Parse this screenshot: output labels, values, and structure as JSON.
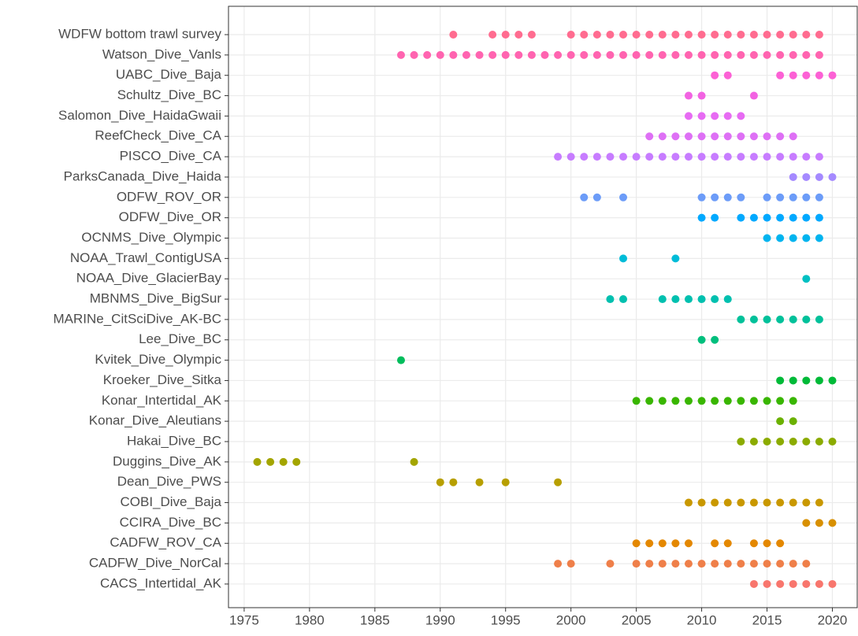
{
  "chart_data": {
    "type": "dot",
    "categories": [
      "WDFW bottom trawl survey",
      "Watson_Dive_Vanls",
      "UABC_Dive_Baja",
      "Schultz_Dive_BC",
      "Salomon_Dive_HaidaGwaii",
      "ReefCheck_Dive_CA",
      "PISCO_Dive_CA",
      "ParksCanada_Dive_Haida",
      "ODFW_ROV_OR",
      "ODFW_Dive_OR",
      "OCNMS_Dive_Olympic",
      "NOAA_Trawl_ContigUSA",
      "NOAA_Dive_GlacierBay",
      "MBNMS_Dive_BigSur",
      "MARINe_CitSciDive_AK-BC",
      "Lee_Dive_BC",
      "Kvitek_Dive_Olympic",
      "Kroeker_Dive_Sitka",
      "Konar_Intertidal_AK",
      "Konar_Dive_Aleutians",
      "Hakai_Dive_BC",
      "Duggins_Dive_AK",
      "Dean_Dive_PWS",
      "COBI_Dive_Baja",
      "CCIRA_Dive_BC",
      "CADFW_ROV_CA",
      "CADFW_Dive_NorCal",
      "CACS_Intertidal_AK"
    ],
    "colors": [
      "#FF6C90",
      "#FF64B0",
      "#FC61D5",
      "#F263E2",
      "#E76BF3",
      "#DE70F5",
      "#C77CFF",
      "#A58AFF",
      "#6C9CF8",
      "#00A9FF",
      "#00B4EF",
      "#00BCD8",
      "#00C0C2",
      "#00C0AF",
      "#00C19A",
      "#00BF7D",
      "#00BD5C",
      "#00BA38",
      "#39B600",
      "#6BB100",
      "#8BAB00",
      "#A3A500",
      "#B79F00",
      "#C99800",
      "#D89000",
      "#E48800",
      "#EF7F49",
      "#F8766D"
    ],
    "values": [
      [
        1991,
        1994,
        1995,
        1996,
        1997,
        2000,
        2001,
        2002,
        2003,
        2004,
        2005,
        2006,
        2007,
        2008,
        2009,
        2010,
        2011,
        2012,
        2013,
        2014,
        2015,
        2016,
        2017,
        2018,
        2019
      ],
      [
        1987,
        1988,
        1989,
        1990,
        1991,
        1992,
        1993,
        1994,
        1995,
        1996,
        1997,
        1998,
        1999,
        2000,
        2001,
        2002,
        2003,
        2004,
        2005,
        2006,
        2007,
        2008,
        2009,
        2010,
        2011,
        2012,
        2013,
        2014,
        2015,
        2016,
        2017,
        2018,
        2019
      ],
      [
        2011,
        2012,
        2016,
        2017,
        2018,
        2019,
        2020
      ],
      [
        2009,
        2010,
        2014
      ],
      [
        2009,
        2010,
        2011,
        2012,
        2013
      ],
      [
        2006,
        2007,
        2008,
        2009,
        2010,
        2011,
        2012,
        2013,
        2014,
        2015,
        2016,
        2017
      ],
      [
        1999,
        2000,
        2001,
        2002,
        2003,
        2004,
        2005,
        2006,
        2007,
        2008,
        2009,
        2010,
        2011,
        2012,
        2013,
        2014,
        2015,
        2016,
        2017,
        2018,
        2019
      ],
      [
        2017,
        2018,
        2019,
        2020
      ],
      [
        2001,
        2002,
        2004,
        2010,
        2011,
        2012,
        2013,
        2015,
        2016,
        2017,
        2018,
        2019
      ],
      [
        2010,
        2011,
        2013,
        2014,
        2015,
        2016,
        2017,
        2018,
        2019
      ],
      [
        2015,
        2016,
        2017,
        2018,
        2019
      ],
      [
        2004,
        2008
      ],
      [
        2018
      ],
      [
        2003,
        2004,
        2007,
        2008,
        2009,
        2010,
        2011,
        2012
      ],
      [
        2013,
        2014,
        2015,
        2016,
        2017,
        2018,
        2019
      ],
      [
        2010,
        2011
      ],
      [
        1987
      ],
      [
        2016,
        2017,
        2018,
        2019,
        2020
      ],
      [
        2005,
        2006,
        2007,
        2008,
        2009,
        2010,
        2011,
        2012,
        2013,
        2014,
        2015,
        2016,
        2017
      ],
      [
        2016,
        2017
      ],
      [
        2013,
        2014,
        2015,
        2016,
        2017,
        2018,
        2019,
        2020
      ],
      [
        1976,
        1977,
        1978,
        1979,
        1988
      ],
      [
        1990,
        1991,
        1993,
        1995,
        1999
      ],
      [
        2009,
        2010,
        2011,
        2012,
        2013,
        2014,
        2015,
        2016,
        2017,
        2018,
        2019
      ],
      [
        2018,
        2019,
        2020
      ],
      [
        2005,
        2006,
        2007,
        2008,
        2009,
        2011,
        2012,
        2014,
        2015,
        2016
      ],
      [
        1999,
        2000,
        2003,
        2005,
        2006,
        2007,
        2008,
        2009,
        2010,
        2011,
        2012,
        2013,
        2014,
        2015,
        2016,
        2017,
        2018
      ],
      [
        2014,
        2015,
        2016,
        2017,
        2018,
        2019,
        2020
      ]
    ],
    "xlim": [
      1973.8,
      2021.9
    ],
    "xticks": [
      1975,
      1980,
      1985,
      1990,
      1995,
      2000,
      2005,
      2010,
      2015,
      2020
    ],
    "grid": true
  }
}
